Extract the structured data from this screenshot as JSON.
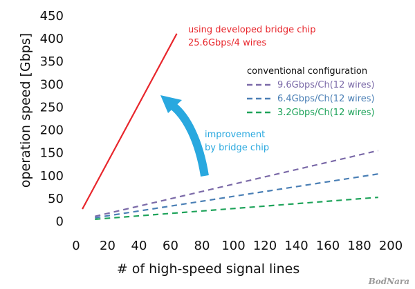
{
  "chart_data": {
    "type": "line",
    "xlabel": "# of high-speed signal lines",
    "ylabel": "operation speed [Gbps]",
    "xlim": [
      0,
      200
    ],
    "ylim": [
      0,
      450
    ],
    "xticks": [
      0,
      20,
      40,
      60,
      80,
      100,
      120,
      140,
      160,
      180,
      200
    ],
    "yticks": [
      0,
      50,
      100,
      150,
      200,
      250,
      300,
      350,
      400,
      450
    ],
    "grid": false,
    "series": [
      {
        "name": "25.6Gbps/4 wires",
        "color": "#e8262c",
        "dash": "solid",
        "x": [
          4,
          64
        ],
        "y": [
          25.6,
          409.6
        ]
      },
      {
        "name": "9.6Gbps/Ch(12 wires)",
        "color": "#7b6aa8",
        "dash": "dashed",
        "x": [
          12,
          192
        ],
        "y": [
          9.6,
          153.6
        ]
      },
      {
        "name": "6.4Gbps/Ch(12 wires)",
        "color": "#4a7fb5",
        "dash": "dashed",
        "x": [
          12,
          192
        ],
        "y": [
          6.4,
          102.4
        ]
      },
      {
        "name": "3.2Gbps/Ch(12 wires)",
        "color": "#1ea35a",
        "dash": "dashed",
        "x": [
          12,
          192
        ],
        "y": [
          3.2,
          51.2
        ]
      }
    ],
    "annotations": {
      "developed_line1": "using developed bridge chip",
      "developed_line2": "25.6Gbps/4 wires",
      "conventional_title": "conventional configuration",
      "improvement_line1": "improvement",
      "improvement_line2": "by bridge chip",
      "improvement_color": "#29a8df",
      "developed_color": "#e8262c"
    }
  },
  "watermark": "BodNara"
}
